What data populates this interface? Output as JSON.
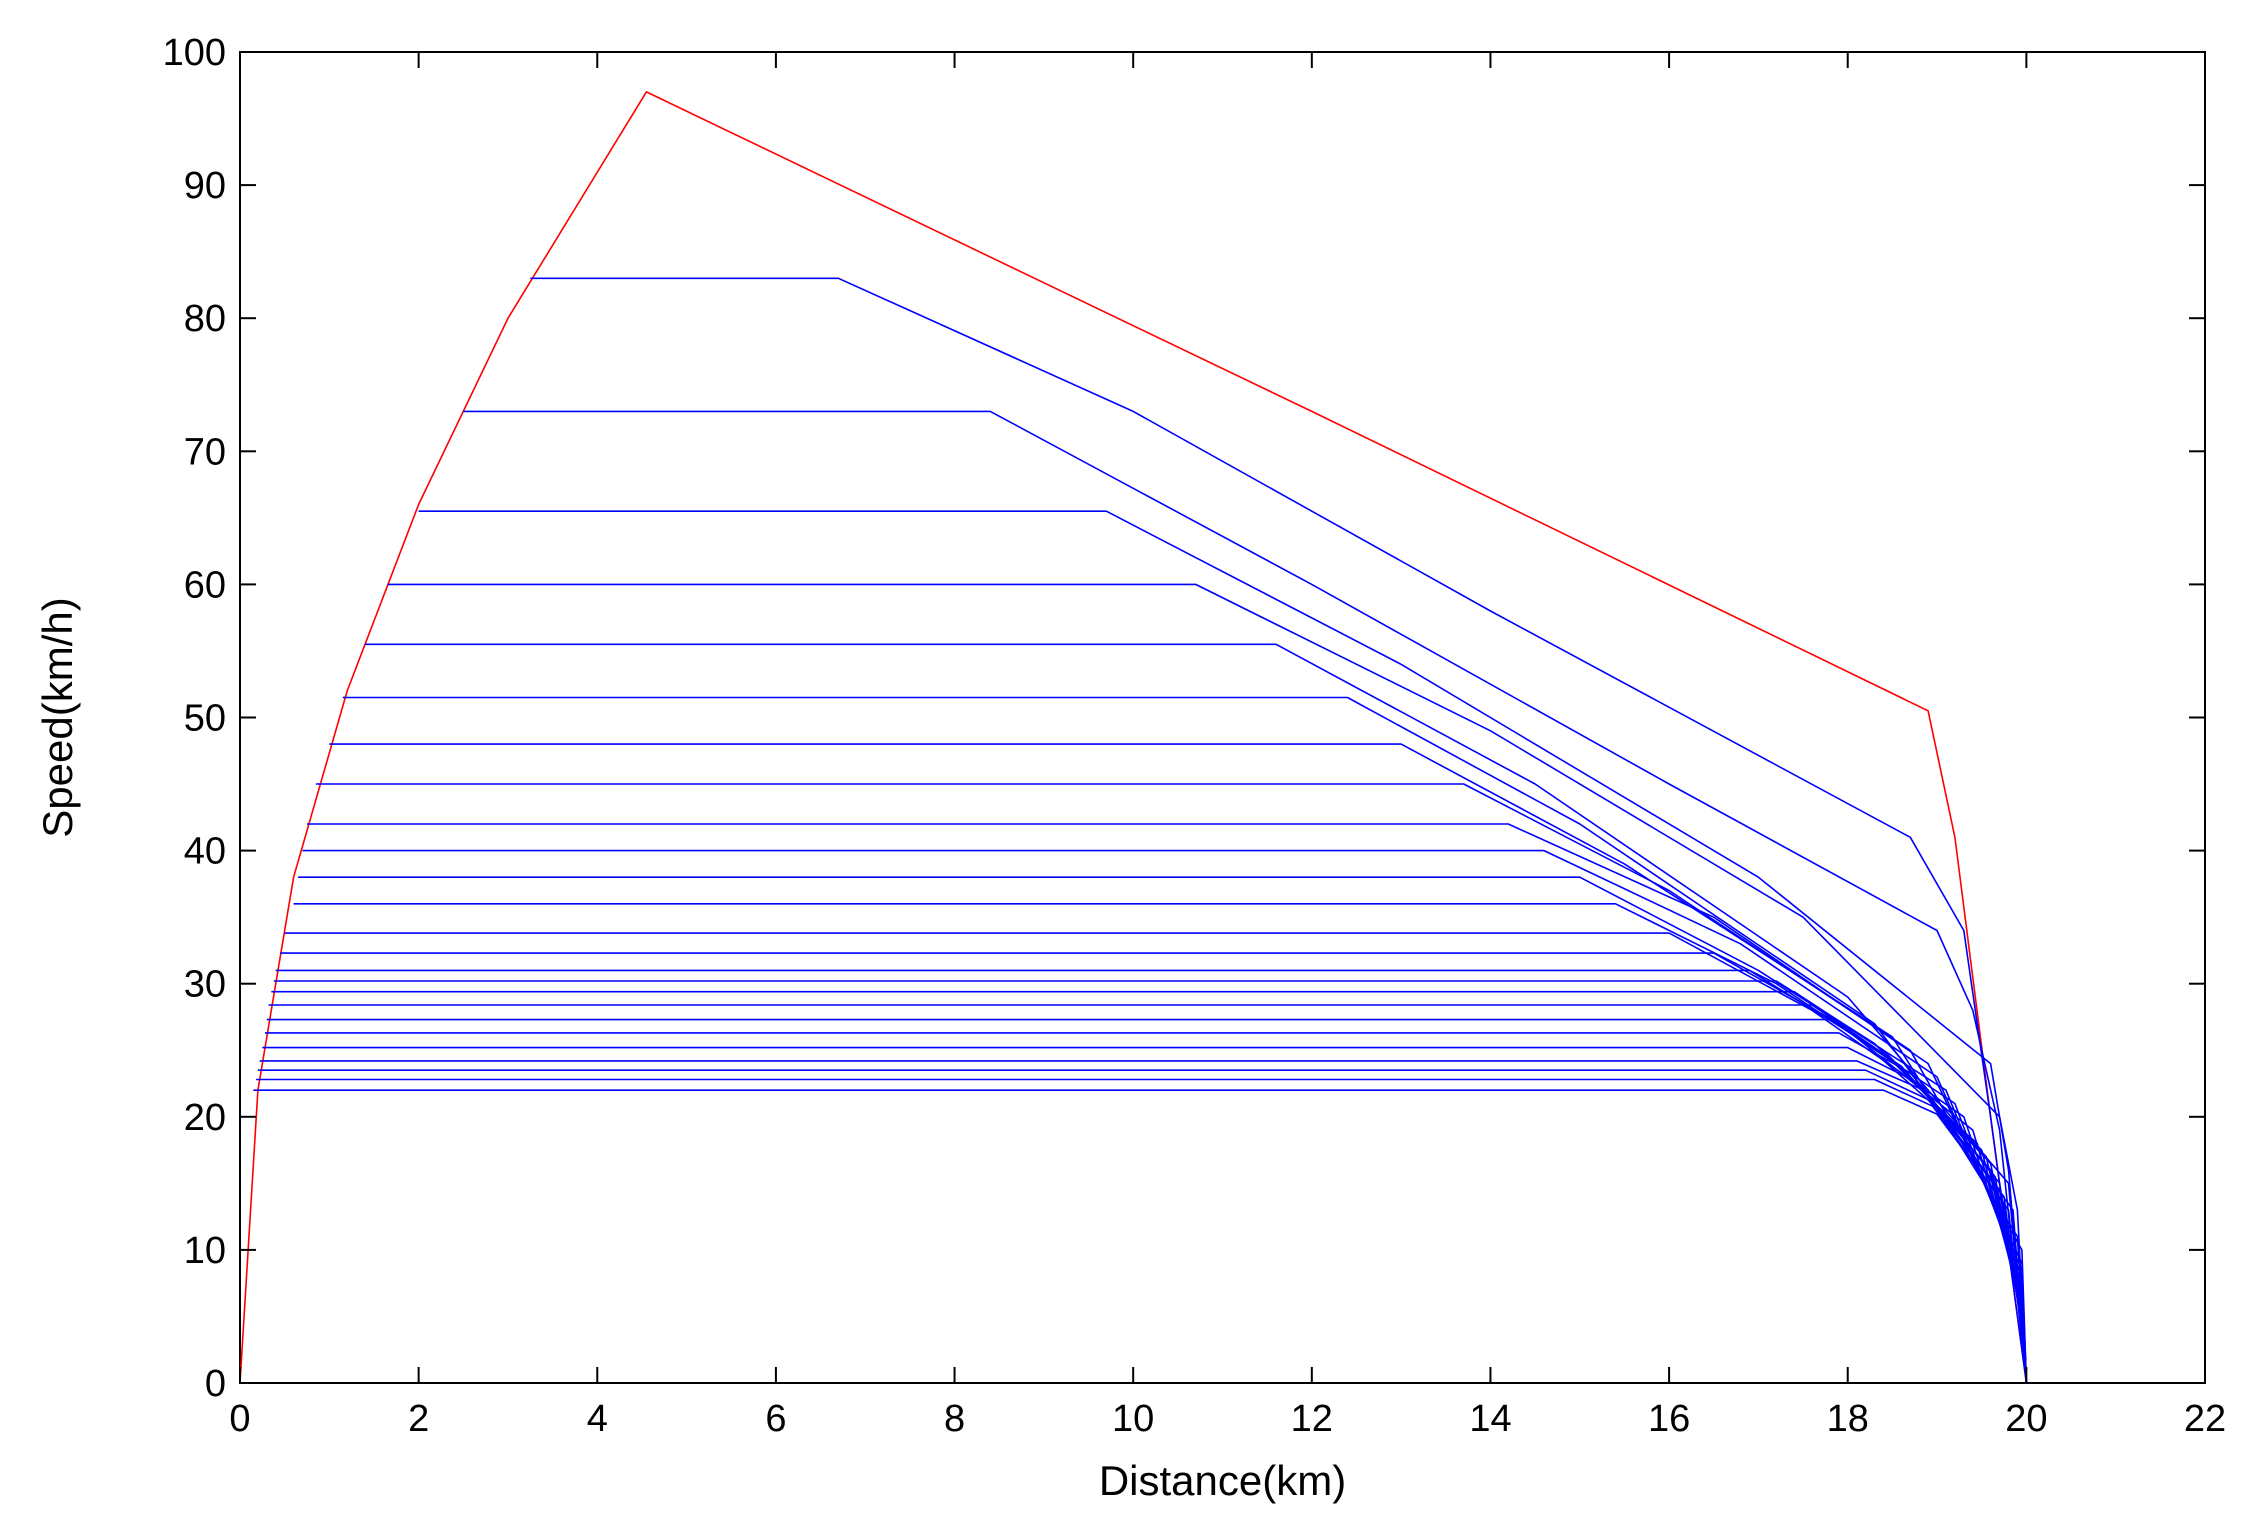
{
  "chart_data": {
    "type": "line",
    "title": "",
    "xlabel": "Distance(km)",
    "ylabel": "Speed(km/h)",
    "xlim": [
      0,
      22
    ],
    "ylim": [
      0,
      100
    ],
    "xticks": [
      0,
      2,
      4,
      6,
      8,
      10,
      12,
      14,
      16,
      18,
      20,
      22
    ],
    "yticks": [
      0,
      10,
      20,
      30,
      40,
      50,
      60,
      70,
      80,
      90,
      100
    ],
    "grid": false,
    "legend": "none",
    "colors": {
      "max_speed_profile": "#ff0000",
      "cruise_profiles": "#0000ff",
      "axes": "#000000"
    },
    "series": [
      {
        "x": [
          0,
          0.2,
          0.6,
          1.2,
          2.0,
          3.0,
          4.55,
          12.0,
          18.9,
          19.2,
          19.6,
          20.0
        ],
        "y": [
          0,
          22,
          38,
          52,
          66,
          80,
          97,
          73,
          50.5,
          41,
          20,
          0
        ],
        "color": "#ff0000"
      },
      {
        "x": [
          3.25,
          6.7,
          10,
          14,
          18.7,
          19.3,
          19.6,
          20.0
        ],
        "y": [
          83,
          83,
          73,
          58,
          41,
          34,
          20,
          0
        ],
        "color": "#0000ff"
      },
      {
        "x": [
          2.5,
          8.4,
          12,
          16,
          19.0,
          19.4,
          19.7,
          20.0
        ],
        "y": [
          73,
          73,
          60,
          45,
          34,
          28,
          19,
          0
        ],
        "color": "#0000ff"
      },
      {
        "x": [
          2.0,
          9.7,
          13,
          17,
          19.6,
          19.8,
          20.0
        ],
        "y": [
          65.5,
          65.5,
          54,
          38,
          24,
          16,
          0
        ],
        "color": "#0000ff"
      },
      {
        "x": [
          1.65,
          10.7,
          14,
          17.5,
          19.7,
          19.9,
          20.0
        ],
        "y": [
          60,
          60,
          49,
          35,
          20,
          13,
          0
        ],
        "color": "#0000ff"
      },
      {
        "x": [
          1.4,
          11.6,
          14.5,
          18,
          19.8,
          20.0
        ],
        "y": [
          55.5,
          55.5,
          45,
          29,
          15,
          0
        ],
        "color": "#0000ff"
      },
      {
        "x": [
          1.15,
          12.4,
          15,
          18.3,
          19.85,
          20.0
        ],
        "y": [
          51.5,
          51.5,
          42,
          27,
          13,
          0
        ],
        "color": "#0000ff"
      },
      {
        "x": [
          1.0,
          13.0,
          15.5,
          18.5,
          19.9,
          20.0
        ],
        "y": [
          48,
          48,
          39,
          26,
          11,
          0
        ],
        "color": "#0000ff"
      },
      {
        "x": [
          0.85,
          13.7,
          16,
          18.7,
          19.95,
          20.0
        ],
        "y": [
          45,
          45,
          37,
          25,
          10,
          0
        ],
        "color": "#0000ff"
      },
      {
        "x": [
          0.75,
          14.2,
          16.5,
          18.9,
          19.95,
          20.0
        ],
        "y": [
          42,
          42,
          35,
          24,
          9,
          0
        ],
        "color": "#0000ff"
      },
      {
        "x": [
          0.7,
          14.6,
          16.8,
          19.0,
          19.95,
          20.0
        ],
        "y": [
          40,
          40,
          33,
          23,
          8.5,
          0
        ],
        "color": "#0000ff"
      },
      {
        "x": [
          0.65,
          15.0,
          17.0,
          19.1,
          19.95,
          20.0
        ],
        "y": [
          38,
          38,
          31,
          22,
          8,
          0
        ],
        "color": "#0000ff"
      },
      {
        "x": [
          0.6,
          15.4,
          17.2,
          19.2,
          19.95,
          20.0
        ],
        "y": [
          36,
          36,
          30,
          21,
          7.5,
          0
        ],
        "color": "#0000ff"
      },
      {
        "x": [
          0.5,
          16.0,
          17.6,
          19.3,
          19.95,
          20.0
        ],
        "y": [
          33.8,
          33.8,
          28,
          20,
          7,
          0
        ],
        "color": "#0000ff"
      },
      {
        "x": [
          0.45,
          16.5,
          17.9,
          19.4,
          19.95,
          20.0
        ],
        "y": [
          32.3,
          32.3,
          27,
          19,
          6.5,
          0
        ],
        "color": "#0000ff"
      },
      {
        "x": [
          0.4,
          16.9,
          18.1,
          19.45,
          19.95,
          20.0
        ],
        "y": [
          31,
          31,
          26,
          18,
          6,
          0
        ],
        "color": "#0000ff"
      },
      {
        "x": [
          0.38,
          17.2,
          18.3,
          19.5,
          19.95,
          20.0
        ],
        "y": [
          30.2,
          30.2,
          25.5,
          17.5,
          5.5,
          0
        ],
        "color": "#0000ff"
      },
      {
        "x": [
          0.35,
          17.4,
          18.4,
          19.55,
          19.95,
          20.0
        ],
        "y": [
          29.4,
          29.4,
          25,
          17,
          5.2,
          0
        ],
        "color": "#0000ff"
      },
      {
        "x": [
          0.32,
          17.6,
          18.5,
          19.6,
          19.95,
          20.0
        ],
        "y": [
          28.4,
          28.4,
          24.3,
          16.5,
          5,
          0
        ],
        "color": "#0000ff"
      },
      {
        "x": [
          0.3,
          17.8,
          18.6,
          19.6,
          19.95,
          20.0
        ],
        "y": [
          27.3,
          27.3,
          23.8,
          16,
          4.8,
          0
        ],
        "color": "#0000ff"
      },
      {
        "x": [
          0.28,
          17.9,
          18.7,
          19.65,
          19.95,
          20.0
        ],
        "y": [
          26.3,
          26.3,
          23.3,
          15.5,
          4.6,
          0
        ],
        "color": "#0000ff"
      },
      {
        "x": [
          0.25,
          18.0,
          18.8,
          19.7,
          19.95,
          20.0
        ],
        "y": [
          25.2,
          25.2,
          22.5,
          15,
          4.4,
          0
        ],
        "color": "#0000ff"
      },
      {
        "x": [
          0.22,
          18.1,
          18.85,
          19.7,
          19.95,
          20.0
        ],
        "y": [
          24.2,
          24.2,
          22,
          14.5,
          4.2,
          0
        ],
        "color": "#0000ff"
      },
      {
        "x": [
          0.2,
          18.2,
          18.9,
          19.75,
          19.95,
          20.0
        ],
        "y": [
          23.5,
          23.5,
          21.3,
          14,
          4,
          0
        ],
        "color": "#0000ff"
      },
      {
        "x": [
          0.18,
          18.3,
          18.95,
          19.75,
          19.95,
          20.0
        ],
        "y": [
          22.8,
          22.8,
          20.8,
          13.5,
          3.8,
          0
        ],
        "color": "#0000ff"
      },
      {
        "x": [
          0.15,
          18.4,
          19.0,
          19.8,
          19.95,
          20.0
        ],
        "y": [
          22,
          22,
          20.2,
          13,
          3.5,
          0
        ],
        "color": "#0000ff"
      }
    ]
  }
}
